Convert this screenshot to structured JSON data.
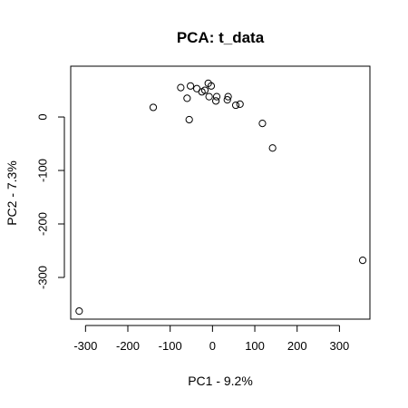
{
  "chart_data": {
    "type": "scatter",
    "title": "PCA: t_data",
    "xlabel": "PC1 - 9.2%",
    "ylabel": "PC2 - 7.3%",
    "xlim": [
      -335,
      372
    ],
    "ylim": [
      -378,
      95
    ],
    "xticks": [
      -300,
      -200,
      -100,
      0,
      100,
      200,
      300
    ],
    "yticks": [
      0,
      -100,
      -200,
      -300
    ],
    "xtick_labels": [
      "-300",
      "-200",
      "-100",
      "0",
      "100",
      "200",
      "300"
    ],
    "ytick_labels": [
      "0",
      "-100",
      "-200",
      "-300"
    ],
    "grid": false,
    "legend": "none",
    "points": [
      {
        "x": -315,
        "y": -363
      },
      {
        "x": -140,
        "y": 18
      },
      {
        "x": -75,
        "y": 55
      },
      {
        "x": -60,
        "y": 35
      },
      {
        "x": -55,
        "y": -5
      },
      {
        "x": -52,
        "y": 58
      },
      {
        "x": -37,
        "y": 53
      },
      {
        "x": -25,
        "y": 47
      },
      {
        "x": -18,
        "y": 50
      },
      {
        "x": -10,
        "y": 63
      },
      {
        "x": -8,
        "y": 38
      },
      {
        "x": -3,
        "y": 58
      },
      {
        "x": 8,
        "y": 30
      },
      {
        "x": 10,
        "y": 38
      },
      {
        "x": 35,
        "y": 32
      },
      {
        "x": 37,
        "y": 38
      },
      {
        "x": 55,
        "y": 22
      },
      {
        "x": 65,
        "y": 24
      },
      {
        "x": 118,
        "y": -12
      },
      {
        "x": 142,
        "y": -58
      },
      {
        "x": 355,
        "y": -268
      }
    ]
  }
}
